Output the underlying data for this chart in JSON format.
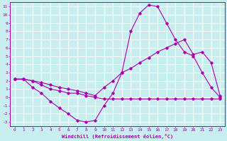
{
  "xlabel": "Windchill (Refroidissement éolien,°C)",
  "background_color": "#c8eef0",
  "grid_color": "#ffffff",
  "line_color": "#aa00aa",
  "xlim": [
    -0.5,
    23.5
  ],
  "ylim": [
    -3.5,
    11.5
  ],
  "xticks": [
    0,
    1,
    2,
    3,
    4,
    5,
    6,
    7,
    8,
    9,
    10,
    11,
    12,
    13,
    14,
    15,
    16,
    17,
    18,
    19,
    20,
    21,
    22,
    23
  ],
  "yticks": [
    -3,
    -2,
    -1,
    0,
    1,
    2,
    3,
    4,
    5,
    6,
    7,
    8,
    9,
    10,
    11
  ],
  "series": [
    {
      "x": [
        0,
        1,
        2,
        3,
        4,
        5,
        6,
        7,
        8,
        9,
        10,
        11,
        12,
        13,
        14,
        15,
        16,
        17,
        18,
        19,
        20,
        21,
        22,
        23
      ],
      "y": [
        2.2,
        2.2,
        1.2,
        0.5,
        -0.5,
        -1.3,
        -2.0,
        -2.8,
        -3.0,
        -2.8,
        -1.0,
        0.5,
        3.0,
        8.0,
        10.2,
        11.2,
        11.0,
        9.0,
        7.0,
        5.5,
        5.0,
        3.0,
        1.2,
        0.0
      ]
    },
    {
      "x": [
        0,
        1,
        2,
        3,
        4,
        5,
        6,
        7,
        8,
        9,
        10,
        11,
        12,
        13,
        14,
        15,
        16,
        17,
        18,
        19,
        20,
        21,
        22,
        23
      ],
      "y": [
        2.2,
        2.2,
        2.0,
        1.8,
        1.5,
        1.2,
        1.0,
        0.8,
        0.5,
        0.2,
        1.2,
        2.0,
        3.0,
        3.5,
        4.2,
        4.8,
        5.5,
        6.0,
        6.5,
        7.0,
        5.2,
        5.5,
        4.2,
        0.2
      ]
    },
    {
      "x": [
        0,
        1,
        2,
        3,
        4,
        5,
        6,
        7,
        8,
        9,
        10,
        11,
        12,
        13,
        14,
        15,
        16,
        17,
        18,
        19,
        20,
        21,
        22,
        23
      ],
      "y": [
        2.2,
        2.2,
        2.0,
        1.5,
        1.0,
        0.8,
        0.5,
        0.5,
        0.2,
        0.0,
        -0.2,
        -0.2,
        -0.2,
        -0.2,
        -0.2,
        -0.2,
        -0.2,
        -0.2,
        -0.2,
        -0.2,
        -0.2,
        -0.2,
        -0.2,
        -0.2
      ]
    }
  ]
}
